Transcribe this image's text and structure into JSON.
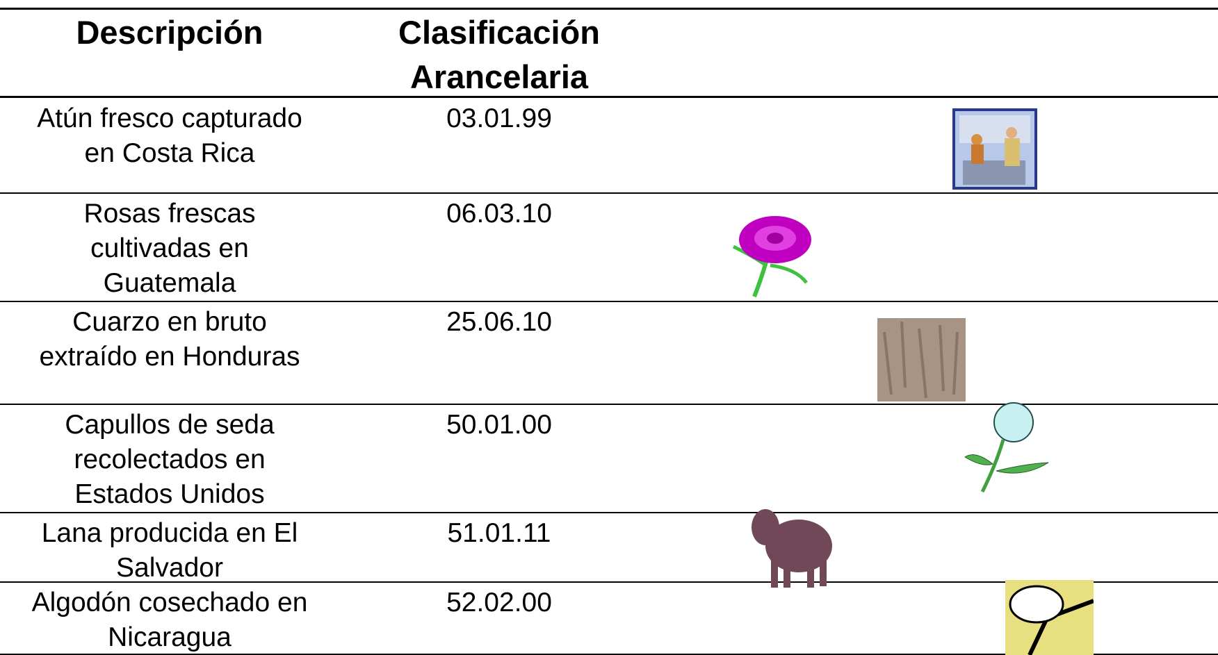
{
  "table": {
    "header": {
      "description": "Descripción",
      "classification": [
        "Clasificación",
        "Arancelaria"
      ]
    },
    "rows": [
      {
        "description": [
          "Atún fresco capturado",
          "en Costa Rica"
        ],
        "code": "03.01.99"
      },
      {
        "description": [
          "Rosas frescas",
          "cultivadas en",
          "Guatemala"
        ],
        "code": "06.03.10"
      },
      {
        "description": [
          "Cuarzo en bruto",
          "extraído en Honduras"
        ],
        "code": "25.06.10"
      },
      {
        "description": [
          "Capullos de seda",
          "recolectados en",
          "Estados Unidos"
        ],
        "code": "50.01.00"
      },
      {
        "description": [
          "Lana producida en El",
          "Salvador"
        ],
        "code": "51.01.11"
      },
      {
        "description": [
          "Algodón cosechado en",
          "Nicaragua"
        ],
        "code": "52.02.00"
      }
    ]
  }
}
